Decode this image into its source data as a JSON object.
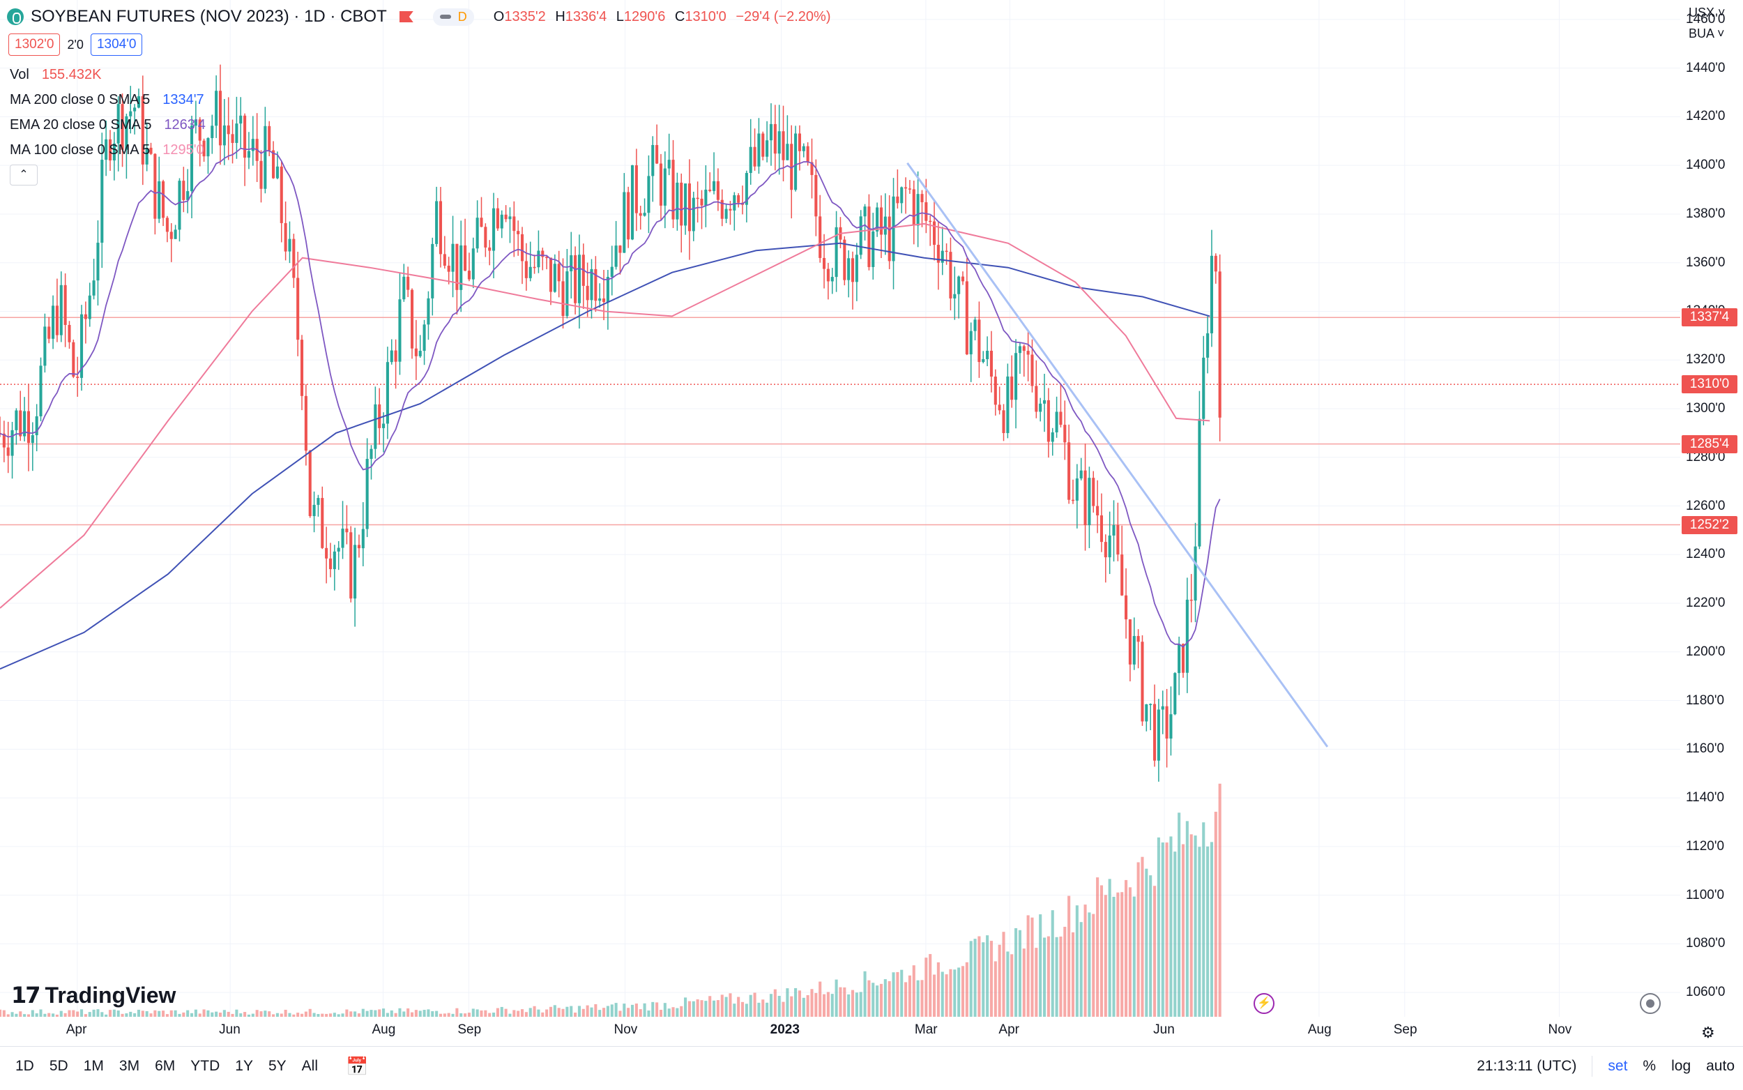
{
  "header": {
    "symbol": "SOYBEAN FUTURES (NOV 2023) · 1D · CBOT",
    "pill_letter": "D",
    "ohlc": {
      "o_label": "O",
      "o": "1335'2",
      "h_label": "H",
      "h": "1336'4",
      "l_label": "L",
      "l": "1290'6",
      "c_label": "C",
      "c": "1310'0",
      "chg": "−29'4 (−2.20%)"
    },
    "bid": "1302'0",
    "spread": "2'0",
    "ask": "1304'0"
  },
  "indicators": [
    {
      "name": "Vol",
      "value": "155.432K",
      "color": "#ef5350"
    },
    {
      "name": "MA 200 close 0 SMA 5",
      "value": "1334'7",
      "color": "#2962ff"
    },
    {
      "name": "EMA 20 close 0 SMA 5",
      "value": "1263'4",
      "color": "#7e57c2"
    },
    {
      "name": "MA 100 close 0 SMA 5",
      "value": "1295'0",
      "color": "#f48fb1"
    }
  ],
  "top_right": {
    "currency": "USX",
    "unit": "BUA"
  },
  "price_axis": [
    "1460'0",
    "1440'0",
    "1420'0",
    "1400'0",
    "1380'0",
    "1360'0",
    "1340'0",
    "1320'0",
    "1300'0",
    "1280'0",
    "1260'0",
    "1240'0",
    "1220'0",
    "1200'0",
    "1180'0",
    "1160'0",
    "1140'0",
    "1120'0",
    "1100'0",
    "1080'0",
    "1060'0"
  ],
  "price_tags": [
    {
      "label": "1337'4",
      "value": 1337.5
    },
    {
      "label": "1310'0",
      "value": 1310
    },
    {
      "label": "1285'4",
      "value": 1285.5
    },
    {
      "label": "1252'2",
      "value": 1252.25
    }
  ],
  "time_axis": [
    "Apr",
    "Jun",
    "Aug",
    "Sep",
    "Nov",
    "2023",
    "Mar",
    "Apr",
    "Jun",
    "Aug",
    "Sep",
    "Nov"
  ],
  "brand": "TradingView",
  "bottom": {
    "timeframes": [
      "1D",
      "5D",
      "1M",
      "3M",
      "6M",
      "YTD",
      "1Y",
      "5Y",
      "All"
    ],
    "clock": "21:13:11 (UTC)",
    "tools": [
      "set",
      "%",
      "log",
      "auto"
    ]
  },
  "chart_data": {
    "type": "candlestick",
    "ylim": [
      1050,
      1468
    ],
    "horizontal_levels": [
      1337.5,
      1285.5,
      1252.25
    ],
    "last_price": 1310,
    "trendline": [
      {
        "x": 0.54,
        "y": 1401
      },
      {
        "x": 0.79,
        "y": 1161
      }
    ],
    "anchors": [
      [
        0,
        1290
      ],
      [
        0.02,
        1300
      ],
      [
        0.035,
        1345
      ],
      [
        0.045,
        1310
      ],
      [
        0.055,
        1355
      ],
      [
        0.065,
        1415
      ],
      [
        0.08,
        1425
      ],
      [
        0.09,
        1395
      ],
      [
        0.1,
        1372
      ],
      [
        0.115,
        1412
      ],
      [
        0.13,
        1420
      ],
      [
        0.145,
        1405
      ],
      [
        0.16,
        1402
      ],
      [
        0.17,
        1372
      ],
      [
        0.18,
        1315
      ],
      [
        0.185,
        1255
      ],
      [
        0.2,
        1245
      ],
      [
        0.21,
        1232
      ],
      [
        0.22,
        1278
      ],
      [
        0.23,
        1310
      ],
      [
        0.24,
        1345
      ],
      [
        0.25,
        1320
      ],
      [
        0.26,
        1382
      ],
      [
        0.275,
        1352
      ],
      [
        0.29,
        1375
      ],
      [
        0.3,
        1392
      ],
      [
        0.31,
        1362
      ],
      [
        0.325,
        1355
      ],
      [
        0.34,
        1350
      ],
      [
        0.36,
        1358
      ],
      [
        0.375,
        1385
      ],
      [
        0.39,
        1397
      ],
      [
        0.41,
        1378
      ],
      [
        0.43,
        1388
      ],
      [
        0.45,
        1400
      ],
      [
        0.46,
        1410
      ],
      [
        0.47,
        1402
      ],
      [
        0.48,
        1395
      ],
      [
        0.49,
        1368
      ],
      [
        0.5,
        1362
      ],
      [
        0.515,
        1370
      ],
      [
        0.53,
        1372
      ],
      [
        0.54,
        1390
      ],
      [
        0.55,
        1378
      ],
      [
        0.56,
        1370
      ],
      [
        0.57,
        1343
      ],
      [
        0.58,
        1330
      ],
      [
        0.59,
        1312
      ],
      [
        0.6,
        1300
      ],
      [
        0.61,
        1320
      ],
      [
        0.62,
        1305
      ],
      [
        0.63,
        1293
      ],
      [
        0.64,
        1265
      ],
      [
        0.65,
        1262
      ],
      [
        0.66,
        1250
      ],
      [
        0.67,
        1215
      ],
      [
        0.68,
        1183
      ],
      [
        0.69,
        1162
      ],
      [
        0.7,
        1183
      ],
      [
        0.71,
        1230
      ],
      [
        0.715,
        1300
      ],
      [
        0.72,
        1355
      ],
      [
        0.723,
        1372
      ],
      [
        0.726,
        1310
      ]
    ],
    "ma200": [
      [
        0,
        1193
      ],
      [
        0.05,
        1208
      ],
      [
        0.1,
        1232
      ],
      [
        0.15,
        1265
      ],
      [
        0.2,
        1290
      ],
      [
        0.25,
        1302
      ],
      [
        0.3,
        1322
      ],
      [
        0.35,
        1340
      ],
      [
        0.4,
        1356
      ],
      [
        0.45,
        1365
      ],
      [
        0.5,
        1368
      ],
      [
        0.55,
        1362
      ],
      [
        0.6,
        1358
      ],
      [
        0.64,
        1350
      ],
      [
        0.68,
        1346
      ],
      [
        0.72,
        1338
      ]
    ],
    "ma100": [
      [
        0,
        1218
      ],
      [
        0.05,
        1248
      ],
      [
        0.1,
        1295
      ],
      [
        0.15,
        1340
      ],
      [
        0.18,
        1362
      ],
      [
        0.22,
        1358
      ],
      [
        0.27,
        1352
      ],
      [
        0.32,
        1345
      ],
      [
        0.36,
        1340
      ],
      [
        0.4,
        1338
      ],
      [
        0.45,
        1355
      ],
      [
        0.5,
        1372
      ],
      [
        0.55,
        1376
      ],
      [
        0.6,
        1368
      ],
      [
        0.64,
        1352
      ],
      [
        0.67,
        1330
      ],
      [
        0.7,
        1296
      ],
      [
        0.72,
        1295
      ]
    ],
    "volume": []
  }
}
